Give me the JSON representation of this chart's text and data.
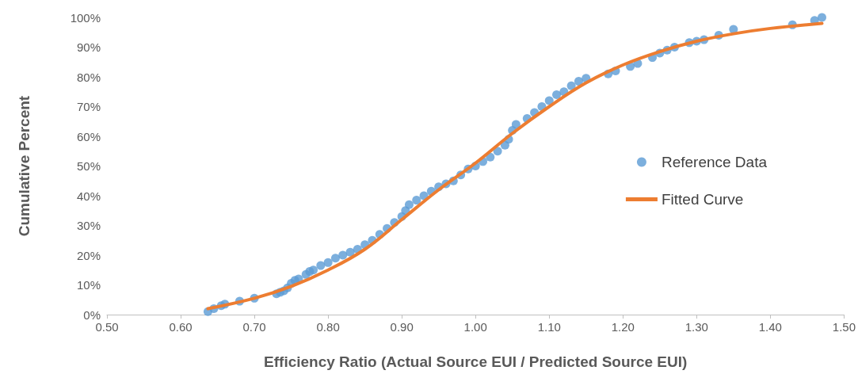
{
  "chart_data": {
    "type": "scatter",
    "xlabel": "Efficiency Ratio (Actual Source EUI / Predicted Source EUI)",
    "ylabel": "Cumulative Percent",
    "xlim": [
      0.5,
      1.5
    ],
    "xticks": [
      {
        "value": 0.5,
        "label": "0.50"
      },
      {
        "value": 0.6,
        "label": "0.60"
      },
      {
        "value": 0.7,
        "label": "0.70"
      },
      {
        "value": 0.8,
        "label": "0.80"
      },
      {
        "value": 0.9,
        "label": "0.90"
      },
      {
        "value": 1.0,
        "label": "1.00"
      },
      {
        "value": 1.1,
        "label": "1.10"
      },
      {
        "value": 1.2,
        "label": "1.20"
      },
      {
        "value": 1.3,
        "label": "1.30"
      },
      {
        "value": 1.4,
        "label": "1.40"
      },
      {
        "value": 1.5,
        "label": "1.50"
      }
    ],
    "ylim": [
      0,
      100
    ],
    "yticks": [
      {
        "value": 0,
        "label": "0%"
      },
      {
        "value": 10,
        "label": "10%"
      },
      {
        "value": 20,
        "label": "20%"
      },
      {
        "value": 30,
        "label": "30%"
      },
      {
        "value": 40,
        "label": "40%"
      },
      {
        "value": 50,
        "label": "50%"
      },
      {
        "value": 60,
        "label": "60%"
      },
      {
        "value": 70,
        "label": "70%"
      },
      {
        "value": 80,
        "label": "80%"
      },
      {
        "value": 90,
        "label": "90%"
      },
      {
        "value": 100,
        "label": "100%"
      }
    ],
    "grid": false,
    "legend": "right",
    "series": [
      {
        "name": "Reference Data",
        "marker": "circle",
        "color": "#5b9bd5",
        "x": [
          0.637,
          0.645,
          0.655,
          0.66,
          0.68,
          0.7,
          0.73,
          0.735,
          0.74,
          0.745,
          0.75,
          0.755,
          0.76,
          0.77,
          0.775,
          0.78,
          0.79,
          0.8,
          0.81,
          0.82,
          0.83,
          0.84,
          0.85,
          0.86,
          0.87,
          0.88,
          0.89,
          0.9,
          0.905,
          0.91,
          0.92,
          0.93,
          0.94,
          0.95,
          0.96,
          0.97,
          0.98,
          0.99,
          1.0,
          1.01,
          1.02,
          1.03,
          1.04,
          1.045,
          1.05,
          1.055,
          1.07,
          1.08,
          1.09,
          1.1,
          1.11,
          1.12,
          1.13,
          1.14,
          1.15,
          1.18,
          1.19,
          1.21,
          1.22,
          1.24,
          1.25,
          1.26,
          1.27,
          1.29,
          1.3,
          1.31,
          1.33,
          1.35,
          1.43,
          1.46,
          1.47
        ],
        "values": [
          1,
          2,
          3,
          3.5,
          4.5,
          5.5,
          7,
          7.5,
          8,
          9,
          10.5,
          11.5,
          12,
          13.5,
          14.5,
          15,
          16.5,
          17.5,
          19,
          20,
          21,
          22,
          23.5,
          25,
          27,
          29,
          31,
          33,
          35,
          37,
          38.5,
          40,
          41.5,
          43,
          44,
          45,
          47,
          49,
          50,
          51.5,
          53,
          55,
          57,
          59,
          62,
          64,
          66,
          68,
          70,
          72,
          74,
          75,
          77,
          78.5,
          79.5,
          81,
          82,
          83.5,
          84.5,
          86.5,
          88,
          89,
          90,
          91.5,
          92,
          92.5,
          94,
          96,
          97.5,
          99,
          100
        ]
      },
      {
        "name": "Fitted Curve",
        "type": "line",
        "marker": "none",
        "line_style": "solid",
        "color": "#ed7d31",
        "x": [
          0.637,
          0.7,
          0.75,
          0.8,
          0.85,
          0.9,
          0.95,
          1.0,
          1.05,
          1.1,
          1.15,
          1.2,
          1.25,
          1.3,
          1.35,
          1.4,
          1.47
        ],
        "values": [
          2,
          5.5,
          9.5,
          15,
          22,
          32,
          42,
          51,
          61,
          70,
          78,
          84,
          88.5,
          92,
          94.5,
          96.3,
          98
        ]
      }
    ]
  }
}
